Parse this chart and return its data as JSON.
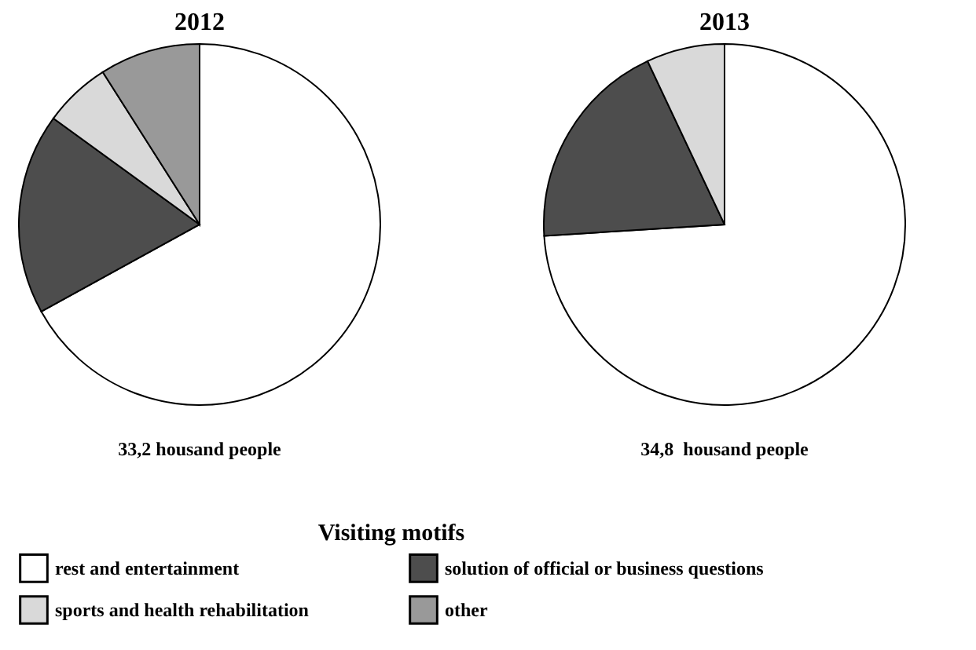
{
  "chart_data": {
    "type": "pie",
    "categories": [
      "rest and entertainment",
      "solution of official or business questions",
      "sports and health rehabilitation",
      "other"
    ],
    "colors": [
      "#ffffff",
      "#4d4d4d",
      "#d9d9d9",
      "#999999"
    ],
    "series": [
      {
        "name": "2012",
        "values": [
          67,
          18,
          6,
          9
        ]
      },
      {
        "name": "2013",
        "values": [
          74,
          19,
          7,
          0
        ]
      }
    ],
    "annotations": [
      "33,2 housand people",
      "34,8  housand people"
    ],
    "legend": "bottom",
    "legend_title": "Visiting motifs"
  }
}
